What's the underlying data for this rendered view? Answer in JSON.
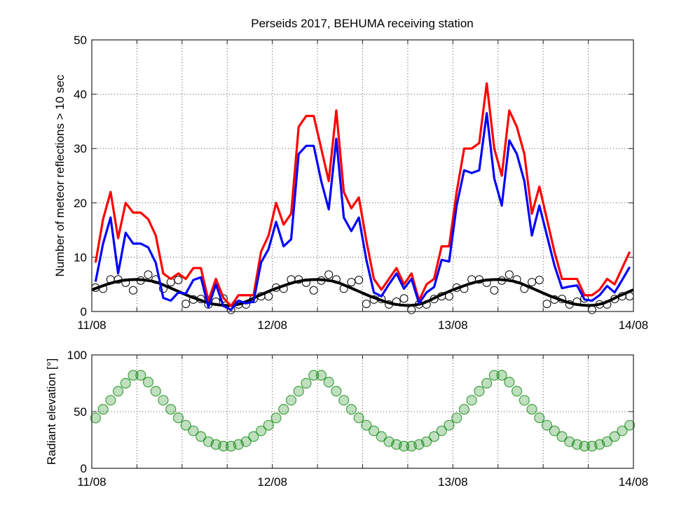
{
  "chart_data": [
    {
      "type": "line",
      "title": "Perseids 2017, BEHUMA receiving station",
      "xlabel": "",
      "ylabel": "Number of meteor reflections > 10 sec",
      "x_unit": "hours after 11/08 00:00",
      "xlim": [
        0,
        72
      ],
      "ylim": [
        0,
        50
      ],
      "x_ticks": [
        0,
        24,
        48,
        72
      ],
      "x_tick_labels": [
        "11/08",
        "12/08",
        "13/08",
        "14/08"
      ],
      "y_ticks": [
        0,
        10,
        20,
        30,
        40,
        50
      ],
      "y_tick_labels": [
        "0",
        "10",
        "20",
        "30",
        "40",
        "50"
      ],
      "grid": true,
      "x": [
        0.5,
        1.5,
        2.5,
        3.5,
        4.5,
        5.5,
        6.5,
        7.5,
        8.5,
        9.5,
        10.5,
        11.5,
        12.5,
        13.5,
        14.5,
        15.5,
        16.5,
        17.5,
        18.5,
        19.5,
        20.5,
        21.5,
        22.5,
        23.5,
        24.5,
        25.5,
        26.5,
        27.5,
        28.5,
        29.5,
        30.5,
        31.5,
        32.5,
        33.5,
        34.5,
        35.5,
        36.5,
        37.5,
        38.5,
        39.5,
        40.5,
        41.5,
        42.5,
        43.5,
        44.5,
        45.5,
        46.5,
        47.5,
        48.5,
        49.5,
        50.5,
        51.5,
        52.5,
        53.5,
        54.5,
        55.5,
        56.5,
        57.5,
        58.5,
        59.5,
        60.5,
        61.5,
        62.5,
        63.5,
        64.5,
        65.5,
        66.5,
        67.5,
        68.5,
        69.5,
        70.5,
        71.5
      ],
      "series": [
        {
          "color": "#ff0000",
          "style": "line",
          "values": [
            9,
            17,
            22,
            13.5,
            20,
            18.2,
            18.2,
            17,
            14,
            7,
            6,
            7,
            6,
            8,
            8,
            2,
            6,
            2.5,
            1,
            3,
            3,
            3,
            11,
            14,
            20,
            16,
            18,
            34,
            36,
            36,
            30,
            24,
            37,
            22,
            19,
            21,
            13,
            6,
            4,
            6,
            8,
            5,
            7,
            2,
            5,
            6,
            12,
            12,
            22,
            30,
            30,
            31,
            42,
            30,
            25,
            37,
            34,
            29,
            18,
            23,
            17,
            11,
            6,
            6,
            6,
            3,
            3,
            4,
            6,
            5,
            8,
            11
          ]
        },
        {
          "color": "#0000ff",
          "style": "line",
          "values": [
            5.5,
            12.5,
            17.3,
            7,
            14.5,
            12.5,
            12.5,
            11.8,
            9,
            2.5,
            2,
            3.5,
            3.3,
            5.8,
            6.3,
            0.8,
            5,
            1,
            0.3,
            2,
            1.5,
            1.8,
            9,
            11.5,
            16.5,
            12,
            13.3,
            29,
            30.5,
            30.5,
            24,
            18.8,
            31.8,
            17.3,
            14.8,
            17.3,
            9.5,
            3.5,
            2.8,
            5,
            7,
            4.2,
            6,
            1.5,
            3.5,
            4.5,
            9.5,
            9.2,
            19.5,
            26,
            25.5,
            26,
            36.5,
            24.5,
            19.5,
            31.5,
            29,
            24,
            14,
            19.5,
            14,
            8.5,
            4.3,
            4.6,
            4.8,
            2.2,
            2,
            3,
            4.7,
            3.5,
            5.8,
            8.2
          ]
        },
        {
          "color": "#000000",
          "style": "markers-open-circle",
          "values": [
            4.4,
            4.2,
            5.9,
            5.9,
            5.3,
            3.9,
            5.7,
            6.8,
            5.9,
            4.2,
            5.4,
            5.8,
            1.4,
            2.2,
            2.3,
            1.3,
            1.8,
            2.4,
            0.3,
            1.3,
            1.3,
            2.3,
            2.8,
            2.8,
            4.4,
            4.2,
            5.9,
            5.9,
            5.3,
            3.9,
            5.7,
            6.8,
            5.9,
            4.2,
            5.4,
            5.8,
            1.4,
            2.2,
            2.3,
            1.3,
            1.8,
            2.4,
            0.3,
            1.3,
            1.3,
            2.3,
            2.8,
            2.8,
            4.4,
            4.2,
            5.9,
            5.9,
            5.3,
            3.9,
            5.7,
            6.8,
            5.9,
            4.2,
            5.4,
            5.8,
            1.4,
            2.2,
            2.3,
            1.3,
            1.8,
            2.4,
            0.3,
            1.3,
            1.3,
            2.3,
            2.8,
            2.8
          ]
        }
      ],
      "fit_curve": {
        "color": "#000000",
        "x": [
          0,
          1,
          2,
          3,
          4,
          5,
          6,
          7,
          8,
          9,
          10,
          11,
          12,
          13,
          14,
          15,
          16,
          17,
          18,
          19,
          20,
          21,
          22,
          23,
          24,
          25,
          26,
          27,
          28,
          29,
          30,
          31,
          32,
          33,
          34,
          35,
          36,
          37,
          38,
          39,
          40,
          41,
          42,
          43,
          44,
          45,
          46,
          47,
          48,
          49,
          50,
          51,
          52,
          53,
          54,
          55,
          56,
          57,
          58,
          59,
          60,
          61,
          62,
          63,
          64,
          65,
          66,
          67,
          68,
          69,
          70,
          71,
          72
        ],
        "values": [
          4.0,
          4.5,
          5.0,
          5.4,
          5.7,
          5.85,
          5.9,
          5.8,
          5.6,
          5.2,
          4.6,
          4.0,
          3.4,
          2.8,
          2.3,
          1.8,
          1.4,
          1.2,
          1.1,
          1.2,
          1.5,
          2.1,
          2.8,
          3.4,
          4.0,
          4.5,
          5.0,
          5.4,
          5.7,
          5.85,
          5.9,
          5.8,
          5.6,
          5.2,
          4.6,
          4.0,
          3.4,
          2.8,
          2.3,
          1.8,
          1.4,
          1.2,
          1.1,
          1.2,
          1.5,
          2.1,
          2.8,
          3.4,
          4.0,
          4.5,
          5.0,
          5.4,
          5.7,
          5.85,
          5.9,
          5.8,
          5.6,
          5.2,
          4.6,
          4.0,
          3.4,
          2.8,
          2.3,
          1.8,
          1.4,
          1.2,
          1.1,
          1.2,
          1.5,
          2.1,
          2.8,
          3.4,
          4.0
        ]
      }
    },
    {
      "type": "scatter",
      "title": "",
      "xlabel": "",
      "ylabel": "Radiant elevation [°]",
      "xlim": [
        0,
        72
      ],
      "ylim": [
        0,
        100
      ],
      "x_ticks": [
        0,
        24,
        48,
        72
      ],
      "x_tick_labels": [
        "11/08",
        "12/08",
        "13/08",
        "14/08"
      ],
      "y_ticks": [
        0,
        50,
        100
      ],
      "y_tick_labels": [
        "0",
        "50",
        "100"
      ],
      "grid": true,
      "marker_color": "#008000",
      "x": [
        0.5,
        1.5,
        2.5,
        3.5,
        4.5,
        5.5,
        6.5,
        7.5,
        8.5,
        9.5,
        10.5,
        11.5,
        12.5,
        13.5,
        14.5,
        15.5,
        16.5,
        17.5,
        18.5,
        19.5,
        20.5,
        21.5,
        22.5,
        23.5,
        24.5,
        25.5,
        26.5,
        27.5,
        28.5,
        29.5,
        30.5,
        31.5,
        32.5,
        33.5,
        34.5,
        35.5,
        36.5,
        37.5,
        38.5,
        39.5,
        40.5,
        41.5,
        42.5,
        43.5,
        44.5,
        45.5,
        46.5,
        47.5,
        48.5,
        49.5,
        50.5,
        51.5,
        52.5,
        53.5,
        54.5,
        55.5,
        56.5,
        57.5,
        58.5,
        59.5,
        60.5,
        61.5,
        62.5,
        63.5,
        64.5,
        65.5,
        66.5,
        67.5,
        68.5,
        69.5,
        70.5,
        71.5
      ],
      "values": [
        44.4,
        52,
        60,
        68,
        75,
        82,
        82,
        76,
        68,
        60,
        52,
        44.5,
        38,
        33,
        28,
        23.5,
        21,
        19.5,
        19.5,
        21,
        23.5,
        28,
        33,
        38,
        44.4,
        52,
        60,
        68,
        75,
        82,
        82,
        76,
        68,
        60,
        52,
        44.5,
        38,
        33,
        28,
        23.5,
        21,
        19.5,
        19.5,
        21,
        23.5,
        28,
        33,
        38,
        44.4,
        52,
        60,
        68,
        75,
        82,
        82,
        76,
        68,
        60,
        52,
        44.5,
        38,
        33,
        28,
        23.5,
        21,
        19.5,
        19.5,
        21,
        23.5,
        28,
        33,
        38
      ]
    }
  ]
}
